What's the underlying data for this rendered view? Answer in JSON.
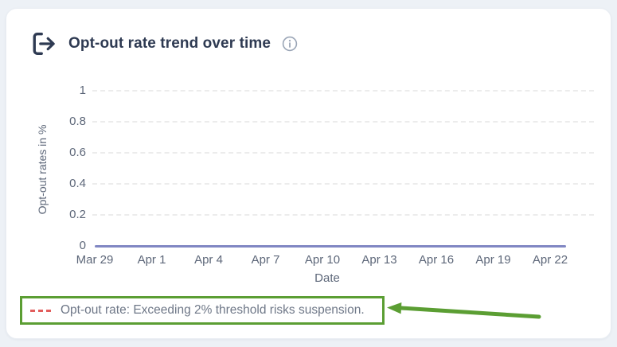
{
  "colors": {
    "page_bg": "#edf1f6",
    "card_bg": "#ffffff",
    "title_text": "#2e3a52",
    "axis_text": "#5d6779",
    "grid_line": "#ececec",
    "series_line": "#8187c3",
    "legend_marker": "#e25d5c",
    "legend_text": "#6e7787",
    "annotation_green": "#5b9e33"
  },
  "header": {
    "title": "Opt-out rate trend over time",
    "leading_icon": "opt-out-sign-out-icon",
    "trailing_icon": "info-icon"
  },
  "chart_data": {
    "type": "line",
    "title": "Opt-out rate trend over time",
    "xlabel": "Date",
    "ylabel": "Opt-out rates in %",
    "x": [
      "Mar 29",
      "Apr 1",
      "Apr 4",
      "Apr 7",
      "Apr 10",
      "Apr 13",
      "Apr 16",
      "Apr 19",
      "Apr 22"
    ],
    "y_tick_labels": [
      "1",
      "0.8",
      "0.6",
      "0.4",
      "0.2",
      "0"
    ],
    "ylim": [
      0,
      1
    ],
    "grid": "horizontal-dashed",
    "legend_position": "bottom-left",
    "series": [
      {
        "name": "Opt-out rate",
        "values": [
          0,
          0,
          0,
          0,
          0,
          0,
          0,
          0,
          0
        ],
        "color": "#8187c3",
        "line_style": "solid"
      }
    ]
  },
  "legend": {
    "marker": "red-dashed-line",
    "marker_color": "#e25d5c",
    "label": "Opt-out rate: Exceeding 2% threshold risks suspension."
  },
  "annotation": {
    "type": "highlight-box-with-arrow",
    "color": "#5b9e33",
    "target": "legend"
  }
}
